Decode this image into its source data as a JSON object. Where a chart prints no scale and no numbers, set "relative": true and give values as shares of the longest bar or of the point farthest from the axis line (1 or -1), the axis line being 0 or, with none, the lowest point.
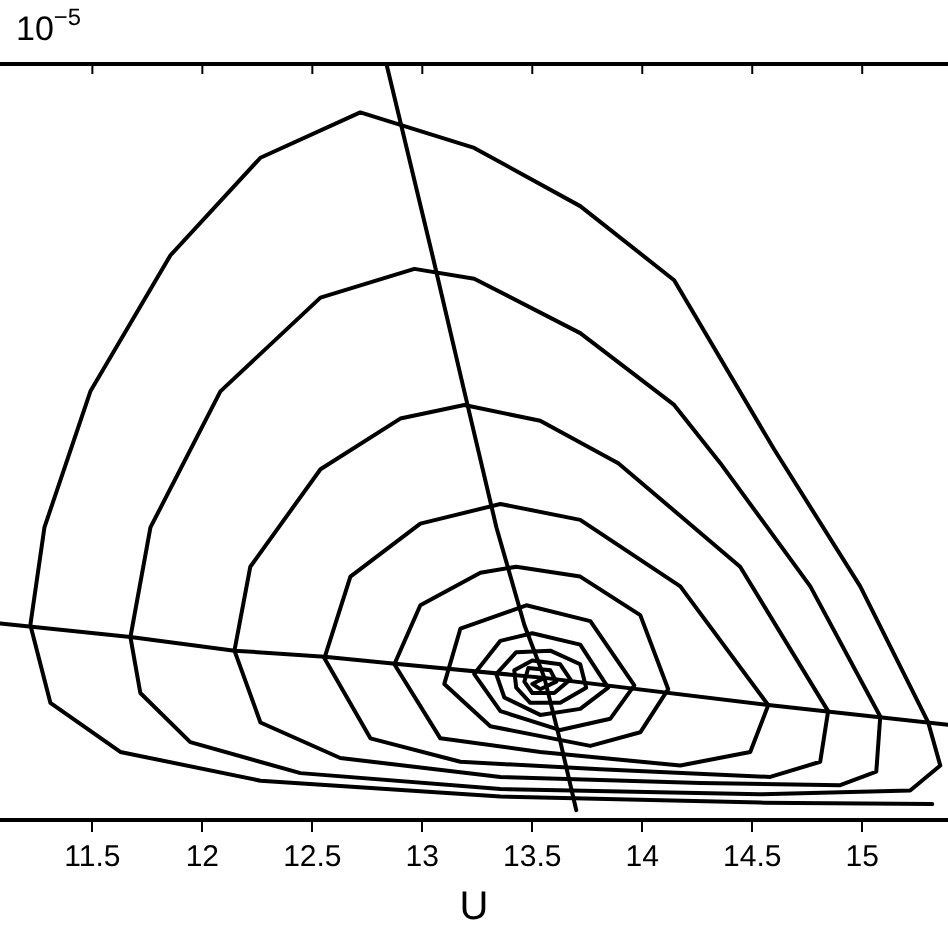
{
  "chart_data": {
    "type": "line",
    "relative": true,
    "xlabel": "U",
    "annotations": [
      "10$^{−5}$"
    ],
    "xlim": [
      11.08,
      15.39
    ],
    "xticks": [
      11.5,
      12,
      12.5,
      13,
      13.5,
      14,
      14.5,
      15
    ],
    "tick_labels": "x",
    "grid": false,
    "series": [
      {
        "color": "#000000",
        "x": [
          15.318,
          14.537,
          13.355,
          12.264,
          11.627,
          11.309,
          11.218,
          11.282,
          11.491,
          11.855,
          12.264,
          12.718,
          13.236,
          13.718,
          14.145,
          14.6,
          14.991,
          15.3,
          15.355,
          15.218,
          14.537,
          13.355,
          12.446,
          11.945,
          11.718,
          11.673,
          11.764,
          12.082,
          12.537,
          12.964,
          13.236,
          13.718,
          14.145,
          14.355,
          14.764,
          15.082,
          15.064,
          14.9,
          14.264,
          13.355,
          12.627,
          12.264,
          12.146,
          12.218,
          12.537,
          12.9,
          13.191,
          13.536,
          13.891,
          14.445,
          14.845,
          14.809,
          14.582,
          13.809,
          13.173,
          12.764,
          12.555,
          12.673,
          12.991,
          13.355,
          13.718,
          14.173,
          14.573,
          14.491,
          14.173,
          13.536,
          13.082,
          12.873,
          12.991,
          13.264,
          13.427,
          13.718,
          13.991,
          14.118,
          13.991,
          13.764,
          13.309,
          13.1,
          13.173,
          13.473,
          13.764,
          13.964,
          13.855,
          13.627,
          13.355,
          13.236,
          13.355,
          13.5,
          13.718,
          13.845,
          13.718,
          13.536,
          13.373,
          13.336,
          13.427,
          13.582,
          13.718,
          13.745,
          13.627,
          13.491,
          13.427,
          13.418,
          13.5,
          13.627,
          13.673,
          13.6,
          13.5,
          13.464,
          13.482,
          13.582,
          13.609,
          13.536,
          13.5,
          13.555
        ],
        "values": [
          0.021,
          0.023,
          0.031,
          0.052,
          0.09,
          0.155,
          0.258,
          0.387,
          0.567,
          0.747,
          0.876,
          0.936,
          0.889,
          0.812,
          0.714,
          0.49,
          0.309,
          0.129,
          0.072,
          0.039,
          0.034,
          0.041,
          0.062,
          0.103,
          0.168,
          0.242,
          0.387,
          0.567,
          0.691,
          0.729,
          0.716,
          0.644,
          0.549,
          0.472,
          0.309,
          0.137,
          0.064,
          0.046,
          0.049,
          0.057,
          0.082,
          0.129,
          0.224,
          0.335,
          0.464,
          0.531,
          0.549,
          0.528,
          0.472,
          0.335,
          0.144,
          0.077,
          0.057,
          0.067,
          0.077,
          0.108,
          0.214,
          0.322,
          0.392,
          0.418,
          0.397,
          0.309,
          0.152,
          0.09,
          0.072,
          0.09,
          0.108,
          0.206,
          0.284,
          0.327,
          0.335,
          0.322,
          0.271,
          0.173,
          0.116,
          0.098,
          0.124,
          0.18,
          0.253,
          0.284,
          0.263,
          0.178,
          0.134,
          0.119,
          0.144,
          0.193,
          0.237,
          0.247,
          0.232,
          0.175,
          0.147,
          0.139,
          0.162,
          0.193,
          0.222,
          0.224,
          0.206,
          0.175,
          0.155,
          0.155,
          0.175,
          0.198,
          0.211,
          0.206,
          0.186,
          0.168,
          0.168,
          0.183,
          0.201,
          0.198,
          0.183,
          0.173,
          0.18,
          0.188
        ]
      },
      {
        "color": "#000000",
        "x": [
          12.837,
          13.046,
          13.191,
          13.337,
          13.464,
          13.555,
          13.628,
          13.7
        ],
        "values": [
          1,
          0.747,
          0.567,
          0.387,
          0.258,
          0.188,
          0.103,
          0.013
        ]
      },
      {
        "color": "#000000",
        "x": [
          11.082,
          11.673,
          12.146,
          12.555,
          12.9,
          13.555,
          14.573,
          15.39
        ],
        "values": [
          0.26,
          0.242,
          0.224,
          0.216,
          0.206,
          0.188,
          0.152,
          0.126
        ]
      }
    ]
  }
}
